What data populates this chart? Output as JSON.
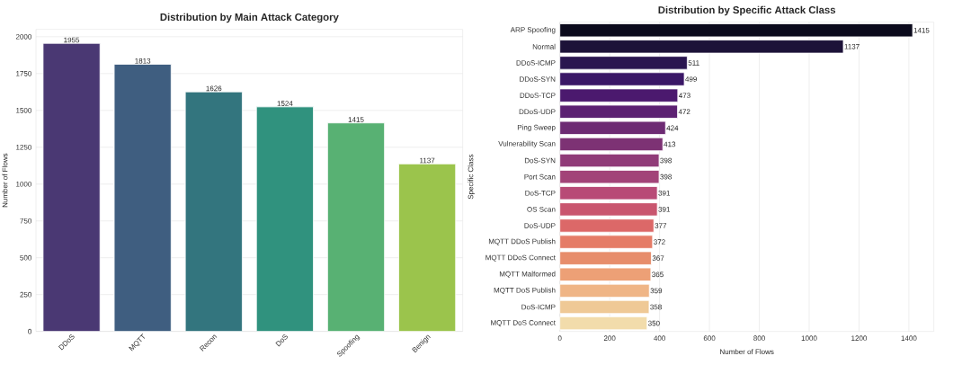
{
  "chart_data": [
    {
      "type": "bar",
      "title": "Distribution by Main Attack Category",
      "ylabel": "Number of Flows",
      "categories": [
        "DDoS",
        "MQTT",
        "Recon",
        "DoS",
        "Spoofing",
        "Benign"
      ],
      "values": [
        1955,
        1813,
        1626,
        1524,
        1415,
        1137
      ],
      "colors": [
        "#4a3873",
        "#3f5e80",
        "#33757e",
        "#30927e",
        "#58b173",
        "#9bc44c"
      ],
      "ylim": [
        0,
        2050
      ],
      "yticks": [
        0,
        250,
        500,
        750,
        1000,
        1250,
        1500,
        1750,
        2000
      ],
      "grid": "y",
      "data_labels": true
    },
    {
      "type": "bar",
      "orientation": "horizontal",
      "title": "Distribution by Specific Attack Class",
      "xlabel": "Number of Flows",
      "ylabel": "Specific Class",
      "categories": [
        "ARP Spoofing",
        "Normal",
        "DDoS-ICMP",
        "DDoS-SYN",
        "DDoS-TCP",
        "DDoS-UDP",
        "Ping Sweep",
        "Vulnerability Scan",
        "DoS-SYN",
        "Port Scan",
        "DoS-TCP",
        "OS Scan",
        "DoS-UDP",
        "MQTT DDoS Publish",
        "MQTT DDoS Connect",
        "MQTT Malformed",
        "MQTT DoS Publish",
        "DoS-ICMP",
        "MQTT DoS Connect"
      ],
      "values": [
        1415,
        1137,
        511,
        499,
        473,
        472,
        424,
        413,
        398,
        398,
        391,
        391,
        377,
        372,
        367,
        365,
        359,
        358,
        350
      ],
      "colors": [
        "#0b0a1c",
        "#1c1238",
        "#2a1650",
        "#3a1766",
        "#4b196e",
        "#5c2172",
        "#6d2b73",
        "#7d3274",
        "#903b78",
        "#a24378",
        "#b84a76",
        "#c9566f",
        "#dc6868",
        "#e57c67",
        "#e78d6b",
        "#eda076",
        "#efb586",
        "#efc996",
        "#f2dcab"
      ],
      "xlim": [
        0,
        1500
      ],
      "xticks": [
        0,
        200,
        400,
        600,
        800,
        1000,
        1200,
        1400
      ],
      "grid": "x",
      "data_labels": true
    }
  ]
}
